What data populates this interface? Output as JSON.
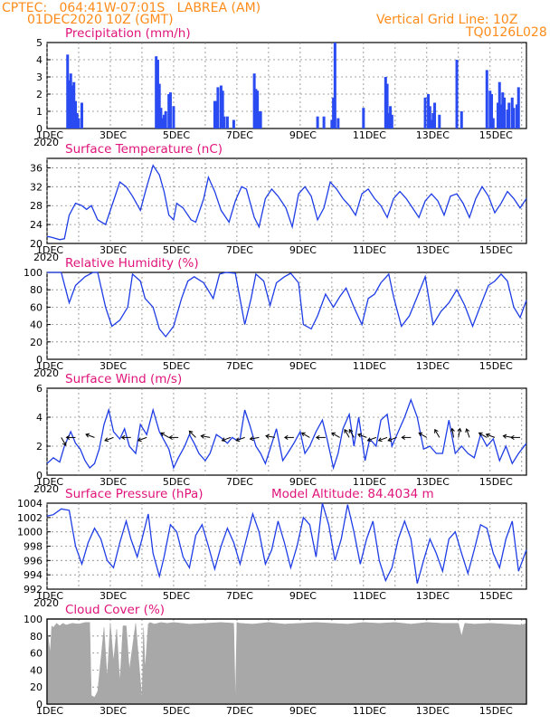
{
  "header": {
    "station_line": "CPTEC:   064:41W-07:01S   LABREA (AM)",
    "date_line": "01DEC2020 10Z (GMT)",
    "grid_line_note": "Vertical Grid Line: 10Z",
    "code": "TQ0126L028"
  },
  "x_axis": {
    "tick_labels": [
      "1DEC",
      "3DEC",
      "5DEC",
      "7DEC",
      "9DEC",
      "11DEC",
      "13DEC",
      "15DEC"
    ],
    "tick_days": [
      0,
      2,
      4,
      6,
      8,
      10,
      12,
      14
    ],
    "range_days": [
      0,
      15.15
    ],
    "cut_label": "2020"
  },
  "colors": {
    "line": "#1f3de6",
    "bar": "#2a4bf2",
    "cloud": "#a8a8a8",
    "title": "#e0147a",
    "header": "#ff8c1a"
  },
  "chart_data": [
    {
      "id": "precip",
      "type": "bar",
      "title": "Precipitation (mm/h)",
      "ylim": [
        0,
        5
      ],
      "yticks": [
        0,
        1,
        2,
        3,
        4,
        5
      ],
      "x_day": [
        0.65,
        0.7,
        0.75,
        0.8,
        0.85,
        0.9,
        0.95,
        1.0,
        1.1,
        3.45,
        3.5,
        3.55,
        3.6,
        3.65,
        3.7,
        3.75,
        3.85,
        3.9,
        4.0,
        5.3,
        5.35,
        5.4,
        5.5,
        5.55,
        5.6,
        5.7,
        5.9,
        6.55,
        6.6,
        6.65,
        6.7,
        6.75,
        8.55,
        8.75,
        9.0,
        9.05,
        9.1,
        9.2,
        10.0,
        10.7,
        10.75,
        10.8,
        10.85,
        10.9,
        11.95,
        12.05,
        12.1,
        12.15,
        12.2,
        12.25,
        12.4,
        12.95,
        13.1,
        13.9,
        14.0,
        14.05,
        14.1,
        14.25,
        14.3,
        14.35,
        14.4,
        14.45,
        14.55,
        14.6,
        14.7,
        14.75,
        14.85,
        14.9
      ],
      "values": [
        4.3,
        2.8,
        3.2,
        2.5,
        2.7,
        1.6,
        0.9,
        0.6,
        1.5,
        4.2,
        4.0,
        2.6,
        1.2,
        0.6,
        0.8,
        1.0,
        2.0,
        2.1,
        1.3,
        1.6,
        1.6,
        2.4,
        2.5,
        2.2,
        0.7,
        0.7,
        0.5,
        3.2,
        2.3,
        2.2,
        1.0,
        1.0,
        0.7,
        0.7,
        0.5,
        1.8,
        5.0,
        0.6,
        1.2,
        3.0,
        2.6,
        0.9,
        1.3,
        0.8,
        1.8,
        2.0,
        1.3,
        0.5,
        0.9,
        1.5,
        0.8,
        4.0,
        1.0,
        3.4,
        2.2,
        2.0,
        0.6,
        1.5,
        2.7,
        1.4,
        2.1,
        1.8,
        1.1,
        1.5,
        1.8,
        1.2,
        1.4,
        2.4
      ]
    },
    {
      "id": "temperature",
      "type": "line",
      "title": "Surface Temperature (nC)",
      "ylim": [
        20,
        38
      ],
      "yticks": [
        20,
        24,
        28,
        32,
        36
      ],
      "x_day": [
        0,
        0.15,
        0.4,
        0.55,
        0.7,
        0.9,
        1.1,
        1.25,
        1.4,
        1.6,
        1.85,
        2.1,
        2.3,
        2.5,
        2.7,
        2.95,
        3.15,
        3.35,
        3.55,
        3.7,
        3.85,
        4.0,
        4.1,
        4.3,
        4.55,
        4.7,
        4.95,
        5.1,
        5.3,
        5.5,
        5.75,
        5.95,
        6.15,
        6.3,
        6.55,
        6.7,
        6.9,
        7.1,
        7.3,
        7.55,
        7.75,
        7.95,
        8.15,
        8.35,
        8.55,
        8.75,
        8.95,
        9.15,
        9.35,
        9.55,
        9.75,
        9.95,
        10.15,
        10.35,
        10.55,
        10.75,
        10.95,
        11.15,
        11.35,
        11.55,
        11.75,
        11.95,
        12.15,
        12.35,
        12.55,
        12.75,
        12.95,
        13.15,
        13.35,
        13.55,
        13.75,
        13.95,
        14.15,
        14.35,
        14.55,
        14.75,
        14.95,
        15.15
      ],
      "values": [
        21.5,
        21.3,
        20.8,
        21.0,
        26.0,
        28.5,
        28.0,
        27.2,
        28.0,
        25.0,
        24.0,
        29.0,
        33.0,
        32.0,
        30.0,
        27.0,
        32.0,
        36.5,
        34.5,
        31.0,
        26.0,
        25.0,
        28.5,
        27.5,
        25.0,
        24.5,
        29.5,
        34.0,
        31.0,
        27.0,
        24.5,
        29.0,
        32.0,
        31.5,
        25.5,
        23.5,
        29.5,
        31.5,
        30.0,
        27.5,
        23.5,
        30.5,
        32.0,
        30.0,
        25.0,
        27.5,
        33.0,
        31.5,
        29.5,
        28.0,
        26.0,
        30.5,
        31.5,
        29.5,
        28.0,
        25.5,
        29.5,
        31.0,
        29.5,
        27.5,
        25.5,
        29.0,
        30.5,
        29.0,
        26.0,
        30.0,
        30.5,
        28.5,
        25.5,
        29.5,
        32.0,
        30.0,
        26.5,
        28.5,
        31.0,
        29.5,
        27.5,
        29.5
      ]
    },
    {
      "id": "humidity",
      "type": "line",
      "title": "Relative Humidity (%)",
      "ylim": [
        0,
        100
      ],
      "yticks": [
        0,
        20,
        40,
        60,
        80,
        100
      ],
      "x_day": [
        0,
        0.2,
        0.45,
        0.7,
        0.9,
        1.2,
        1.45,
        1.6,
        1.85,
        2.05,
        2.3,
        2.55,
        2.7,
        2.95,
        3.1,
        3.35,
        3.55,
        3.75,
        4.0,
        4.25,
        4.45,
        4.65,
        4.95,
        5.25,
        5.45,
        5.65,
        5.95,
        6.25,
        6.45,
        6.6,
        6.85,
        7.05,
        7.25,
        7.5,
        7.7,
        7.95,
        8.1,
        8.35,
        8.55,
        8.8,
        9.05,
        9.25,
        9.45,
        9.7,
        9.95,
        10.15,
        10.35,
        10.55,
        10.8,
        10.95,
        11.2,
        11.45,
        11.7,
        11.95,
        12.2,
        12.45,
        12.7,
        12.95,
        13.2,
        13.45,
        13.7,
        13.95,
        14.15,
        14.35,
        14.55,
        14.75,
        14.95,
        15.15
      ],
      "values": [
        100,
        100,
        100,
        65,
        85,
        95,
        100,
        100,
        60,
        38,
        45,
        60,
        98,
        90,
        70,
        60,
        35,
        26,
        38,
        70,
        90,
        95,
        88,
        70,
        98,
        100,
        99,
        40,
        70,
        98,
        90,
        62,
        88,
        95,
        99,
        88,
        40,
        35,
        50,
        75,
        60,
        72,
        82,
        60,
        40,
        70,
        75,
        88,
        98,
        72,
        38,
        50,
        72,
        95,
        40,
        55,
        65,
        80,
        62,
        38,
        62,
        85,
        90,
        98,
        90,
        60,
        48,
        68
      ]
    },
    {
      "id": "wind",
      "type": "line",
      "title": "Surface Wind (m/s)",
      "ylim": [
        0,
        6
      ],
      "yticks": [
        0,
        2,
        4,
        6
      ],
      "x_day": [
        0,
        0.2,
        0.4,
        0.55,
        0.75,
        0.9,
        1.05,
        1.2,
        1.35,
        1.5,
        1.65,
        1.8,
        1.95,
        2.1,
        2.3,
        2.45,
        2.6,
        2.8,
        2.95,
        3.15,
        3.35,
        3.55,
        3.7,
        3.85,
        4.0,
        4.15,
        4.35,
        4.5,
        4.65,
        4.8,
        5.0,
        5.15,
        5.35,
        5.55,
        5.7,
        5.85,
        6.0,
        6.1,
        6.25,
        6.4,
        6.6,
        6.75,
        6.9,
        7.05,
        7.25,
        7.45,
        7.6,
        7.8,
        8.0,
        8.15,
        8.3,
        8.5,
        8.7,
        8.85,
        9.05,
        9.2,
        9.35,
        9.55,
        9.7,
        9.85,
        10.05,
        10.2,
        10.4,
        10.55,
        10.75,
        10.9,
        11.1,
        11.3,
        11.5,
        11.7,
        11.9,
        12.1,
        12.3,
        12.5,
        12.7,
        12.9,
        13.1,
        13.3,
        13.5,
        13.7,
        13.9,
        14.1,
        14.3,
        14.5,
        14.7,
        14.9,
        15.15
      ],
      "values": [
        0.8,
        1.2,
        0.9,
        2.0,
        3.0,
        2.2,
        1.8,
        1.0,
        0.5,
        0.8,
        1.8,
        3.5,
        4.5,
        3.0,
        2.5,
        3.2,
        2.0,
        1.5,
        3.5,
        2.8,
        4.5,
        3.0,
        2.4,
        1.8,
        0.5,
        1.2,
        2.0,
        2.8,
        2.2,
        1.5,
        1.0,
        1.5,
        2.8,
        2.5,
        2.2,
        2.6,
        2.4,
        2.5,
        4.5,
        3.5,
        2.0,
        1.5,
        0.8,
        1.8,
        3.2,
        1.0,
        1.5,
        2.2,
        3.0,
        1.5,
        2.0,
        3.0,
        3.8,
        2.5,
        0.5,
        1.5,
        3.2,
        4.2,
        2.0,
        4.0,
        1.0,
        2.5,
        2.0,
        3.8,
        4.2,
        2.0,
        3.0,
        4.0,
        5.2,
        4.0,
        1.8,
        2.0,
        1.5,
        1.5,
        3.8,
        1.5,
        2.0,
        1.5,
        1.2,
        2.8,
        2.0,
        2.5,
        1.0,
        2.0,
        0.8,
        1.5,
        2.2
      ],
      "arrow_days": [
        0.45,
        0.9,
        1.5,
        2.1,
        2.65,
        3.15,
        3.85,
        4.15,
        4.7,
        5.15,
        5.8,
        6.25,
        6.7,
        7.2,
        7.8,
        8.3,
        8.8,
        9.25,
        9.55,
        9.7,
        10.1,
        10.4,
        10.75,
        11.05,
        11.5,
        12.0,
        12.4,
        12.85,
        13.0,
        13.35,
        13.9,
        14.15,
        14.7,
        14.95
      ],
      "arrow_dir_deg": [
        300,
        180,
        160,
        200,
        180,
        200,
        150,
        180,
        135,
        170,
        200,
        200,
        190,
        170,
        180,
        150,
        180,
        150,
        120,
        120,
        160,
        200,
        200,
        200,
        180,
        150,
        120,
        100,
        80,
        110,
        150,
        160,
        170,
        180
      ]
    },
    {
      "id": "pressure",
      "type": "line",
      "title": "Surface Pressure (hPa)",
      "annotation": "Model Altitude: 84.4034 m",
      "ylim": [
        992,
        1004
      ],
      "yticks": [
        992,
        994,
        996,
        998,
        1000,
        1002,
        1004
      ],
      "x_day": [
        0,
        0.2,
        0.45,
        0.7,
        0.9,
        1.1,
        1.3,
        1.5,
        1.7,
        1.9,
        2.1,
        2.3,
        2.5,
        2.65,
        2.85,
        3.0,
        3.2,
        3.35,
        3.55,
        3.7,
        3.9,
        4.1,
        4.3,
        4.5,
        4.7,
        4.9,
        5.1,
        5.3,
        5.5,
        5.7,
        5.9,
        6.1,
        6.3,
        6.5,
        6.7,
        6.9,
        7.1,
        7.3,
        7.5,
        7.7,
        7.9,
        8.1,
        8.3,
        8.5,
        8.7,
        8.9,
        9.1,
        9.3,
        9.5,
        9.7,
        9.9,
        10.1,
        10.3,
        10.5,
        10.7,
        10.9,
        11.1,
        11.3,
        11.5,
        11.7,
        11.9,
        12.1,
        12.3,
        12.5,
        12.7,
        12.9,
        13.1,
        13.3,
        13.5,
        13.7,
        13.9,
        14.1,
        14.3,
        14.5,
        14.7,
        14.9,
        15.15
      ],
      "values": [
        1002.2,
        1002.4,
        1003.2,
        1003.0,
        998.0,
        995.5,
        998.5,
        1000.5,
        999.0,
        996.0,
        995.0,
        998.5,
        1001.5,
        999.0,
        996.5,
        999.0,
        1002.5,
        997.0,
        993.8,
        996.5,
        1001.0,
        1000.0,
        996.5,
        995.0,
        999.5,
        1001.0,
        998.0,
        994.8,
        998.0,
        1000.5,
        998.5,
        995.5,
        999.0,
        1002.5,
        1000.0,
        995.5,
        997.5,
        1001.5,
        998.5,
        995.0,
        998.0,
        1002.0,
        1001.0,
        996.5,
        1004.0,
        1001.0,
        996.0,
        999.0,
        1003.8,
        1000.0,
        995.5,
        999.0,
        1001.5,
        996.0,
        993.2,
        995.0,
        999.0,
        1001.5,
        999.0,
        992.8,
        996.0,
        999.0,
        997.0,
        994.5,
        999.0,
        1000.0,
        997.0,
        994.2,
        997.5,
        1001.0,
        1000.5,
        997.0,
        995.0,
        999.0,
        1001.5,
        994.5,
        997.5
      ]
    },
    {
      "id": "cloud",
      "type": "area",
      "title": "Cloud Cover (%)",
      "ylim": [
        0,
        100
      ],
      "yticks": [
        0,
        20,
        40,
        60,
        80,
        100
      ],
      "x_day": [
        0,
        0.1,
        0.15,
        0.2,
        0.3,
        0.4,
        0.5,
        0.6,
        0.8,
        1.0,
        1.2,
        1.35,
        1.4,
        1.5,
        1.6,
        1.8,
        1.9,
        2.0,
        2.1,
        2.2,
        2.3,
        2.4,
        2.5,
        2.6,
        2.8,
        3.0,
        3.05,
        3.1,
        3.2,
        3.25,
        3.4,
        3.6,
        3.8,
        4.0,
        4.5,
        5.0,
        5.5,
        5.9,
        5.95,
        6.0,
        6.1,
        6.5,
        7.0,
        7.5,
        8.0,
        8.5,
        9.0,
        9.5,
        10.0,
        10.5,
        11.0,
        11.5,
        12.0,
        12.5,
        13.0,
        13.1,
        13.2,
        13.5,
        14.0,
        14.5,
        15.0,
        15.15
      ],
      "values": [
        90,
        60,
        92,
        90,
        95,
        92,
        95,
        93,
        95,
        94,
        96,
        96,
        10,
        8,
        15,
        90,
        30,
        95,
        50,
        88,
        25,
        92,
        92,
        40,
        95,
        5,
        90,
        40,
        94,
        96,
        94,
        96,
        95,
        96,
        94,
        95,
        96,
        95,
        3,
        96,
        95,
        94,
        96,
        94,
        95,
        96,
        95,
        94,
        96,
        95,
        96,
        94,
        96,
        95,
        95,
        80,
        95,
        94,
        95,
        94,
        93,
        95
      ]
    }
  ]
}
